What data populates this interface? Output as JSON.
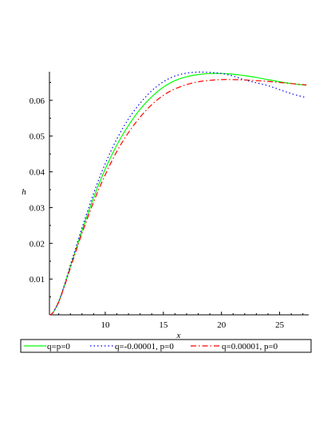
{
  "chart_data": {
    "type": "line",
    "title": "",
    "xlabel": "x",
    "ylabel": "h",
    "xlim": [
      5.2,
      27.5
    ],
    "ylim": [
      0,
      0.068
    ],
    "x_ticks": [
      10,
      15,
      20,
      25
    ],
    "y_ticks": [
      0.01,
      0.02,
      0.03,
      0.04,
      0.05,
      0.06
    ],
    "x_tick_labels": [
      "10",
      "15",
      "20",
      "25"
    ],
    "y_tick_labels": [
      "0.01",
      "0.02",
      "0.03",
      "0.04",
      "0.05",
      "0.06"
    ],
    "grid": false,
    "legend_position": "bottom",
    "legend_boxed": true,
    "series": [
      {
        "name": "q=p=0",
        "color": "#00ff00",
        "dash": "solid",
        "x": [
          5.2,
          5.5,
          6,
          6.5,
          7,
          7.5,
          8,
          9,
          10,
          11,
          12,
          13,
          14,
          15,
          16,
          17,
          18,
          19,
          20,
          21,
          22,
          23,
          24,
          25,
          26,
          27.3
        ],
        "y": [
          0,
          0.0006,
          0.0037,
          0.0083,
          0.0135,
          0.0185,
          0.0235,
          0.0328,
          0.0408,
          0.0475,
          0.053,
          0.0575,
          0.061,
          0.0637,
          0.0655,
          0.0666,
          0.0672,
          0.0675,
          0.0675,
          0.0673,
          0.0669,
          0.0664,
          0.0658,
          0.0652,
          0.0647,
          0.0642
        ]
      },
      {
        "name": "q=-0.00001, p=0",
        "color": "#0000ff",
        "dash": "dotted",
        "x": [
          5.2,
          5.5,
          6,
          6.5,
          7,
          7.5,
          8,
          9,
          10,
          11,
          12,
          13,
          14,
          15,
          16,
          17,
          18,
          19,
          20,
          21,
          22,
          23,
          24,
          25,
          26,
          27.3
        ],
        "y": [
          0,
          0.0006,
          0.0038,
          0.0085,
          0.0139,
          0.0191,
          0.0243,
          0.034,
          0.0423,
          0.0492,
          0.0548,
          0.0592,
          0.0627,
          0.0652,
          0.0668,
          0.0676,
          0.0679,
          0.0678,
          0.0675,
          0.0668,
          0.0657,
          0.0649,
          0.0641,
          0.063,
          0.0619,
          0.0607
        ]
      },
      {
        "name": "q=0.00001, p=0",
        "color": "#ff0000",
        "dash": "dashdot",
        "x": [
          5.2,
          5.5,
          6,
          6.5,
          7,
          7.5,
          8,
          9,
          10,
          11,
          12,
          13,
          14,
          15,
          16,
          17,
          18,
          19,
          20,
          21,
          22,
          23,
          24,
          25,
          26,
          27.3
        ],
        "y": [
          0,
          0.0006,
          0.0036,
          0.0081,
          0.0131,
          0.018,
          0.0228,
          0.0316,
          0.0392,
          0.0457,
          0.051,
          0.0553,
          0.0588,
          0.0614,
          0.0632,
          0.0644,
          0.0652,
          0.0656,
          0.0658,
          0.0658,
          0.0657,
          0.0655,
          0.0653,
          0.065,
          0.0647,
          0.0643
        ]
      }
    ]
  }
}
